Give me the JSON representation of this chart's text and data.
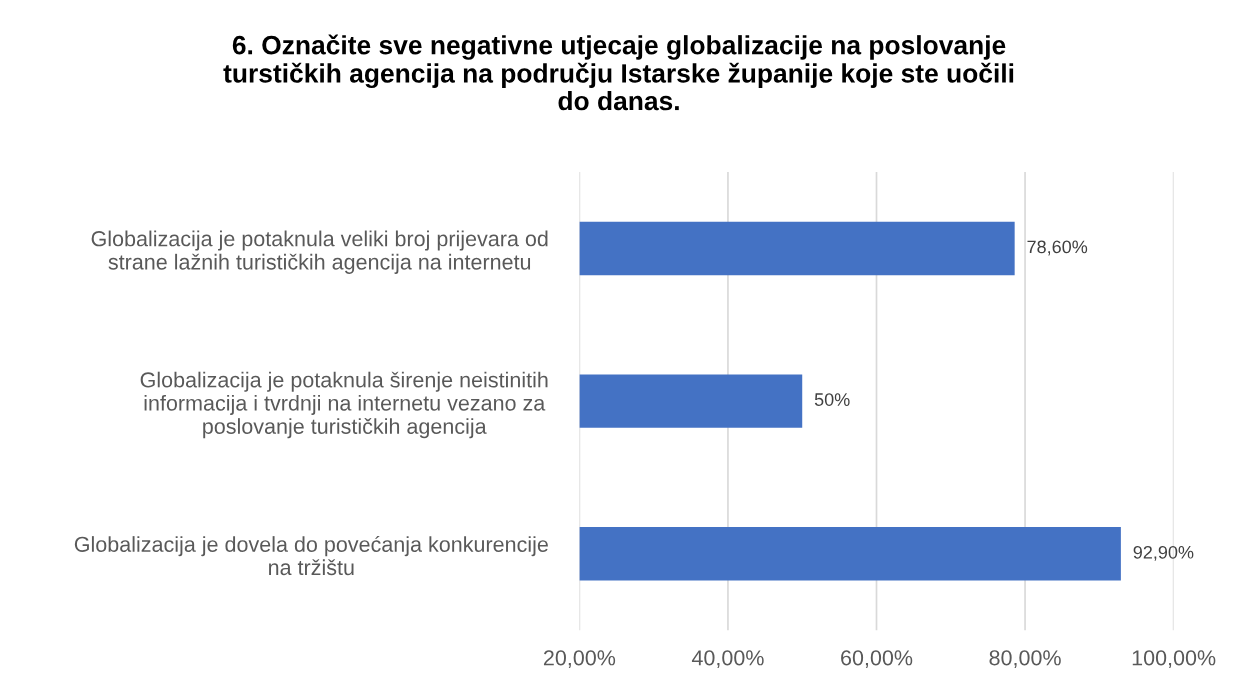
{
  "chart_data": {
    "type": "bar",
    "orientation": "horizontal",
    "title": "6. Označite sve negativne utjecaje globalizacije na poslovanje\nturstičkih agencija na području Istarske županije koje ste uočili\ndo danas.",
    "categories": [
      "Globalizacija je potaknula veliki broj prijevara od\nstrane lažnih turističkih agencija na internetu",
      "Globalizacija je potaknula širenje neistinitih\ninformacija i tvrdnji na internetu vezano za\nposlovanje turističkih agencija",
      "Globalizacija je dovela do povećanja konkurencije\nna tržištu"
    ],
    "values": [
      78.6,
      50,
      92.9
    ],
    "value_labels": [
      "78,60%",
      "50%",
      "92,90%"
    ],
    "color": "#4472c4",
    "xlim": [
      20,
      100
    ],
    "xticks": [
      {
        "value": 20,
        "label": "20,00%"
      },
      {
        "value": 40,
        "label": "40,00%"
      },
      {
        "value": 60,
        "label": "60,00%"
      },
      {
        "value": 80,
        "label": "80,00%"
      },
      {
        "value": 100,
        "label": "100,00%"
      }
    ],
    "grid": "x",
    "legend": false
  }
}
